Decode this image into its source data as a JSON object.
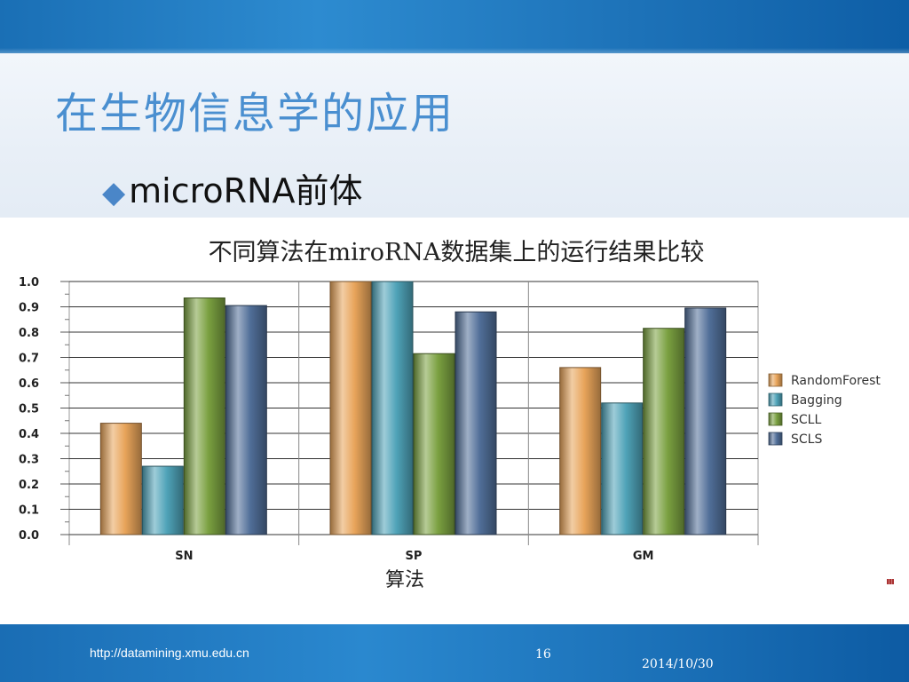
{
  "slide": {
    "title": "在生物信息学的应用",
    "bullet": "microRNA前体",
    "footer": {
      "url": "http://datamining.xmu.edu.cn",
      "page": "16",
      "date": "2014/10/30"
    }
  },
  "colors": {
    "accent_title": "#4a8fd0",
    "band": "#1a6fb5",
    "series": [
      "#e8a45a",
      "#4fa3b8",
      "#7aa040",
      "#506e98"
    ]
  },
  "chart_data": {
    "type": "bar",
    "title": "不同算法在miroRNA数据集上的运行结果比较",
    "xlabel": "算法",
    "ylabel": "",
    "categories": [
      "SN",
      "SP",
      "GM"
    ],
    "ylim": [
      0,
      1.0
    ],
    "yticks": [
      "0.0",
      "0.1",
      "0.2",
      "0.3",
      "0.4",
      "0.5",
      "0.6",
      "0.7",
      "0.8",
      "0.9",
      "1.0"
    ],
    "series": [
      {
        "name": "RandomForest",
        "values": [
          0.44,
          1.0,
          0.66
        ]
      },
      {
        "name": "Bagging",
        "values": [
          0.27,
          1.0,
          0.52
        ]
      },
      {
        "name": "SCLL",
        "values": [
          0.935,
          0.715,
          0.815
        ]
      },
      {
        "name": "SCLS",
        "values": [
          0.905,
          0.88,
          0.895
        ]
      }
    ],
    "grid": true,
    "legend_position": "right"
  }
}
